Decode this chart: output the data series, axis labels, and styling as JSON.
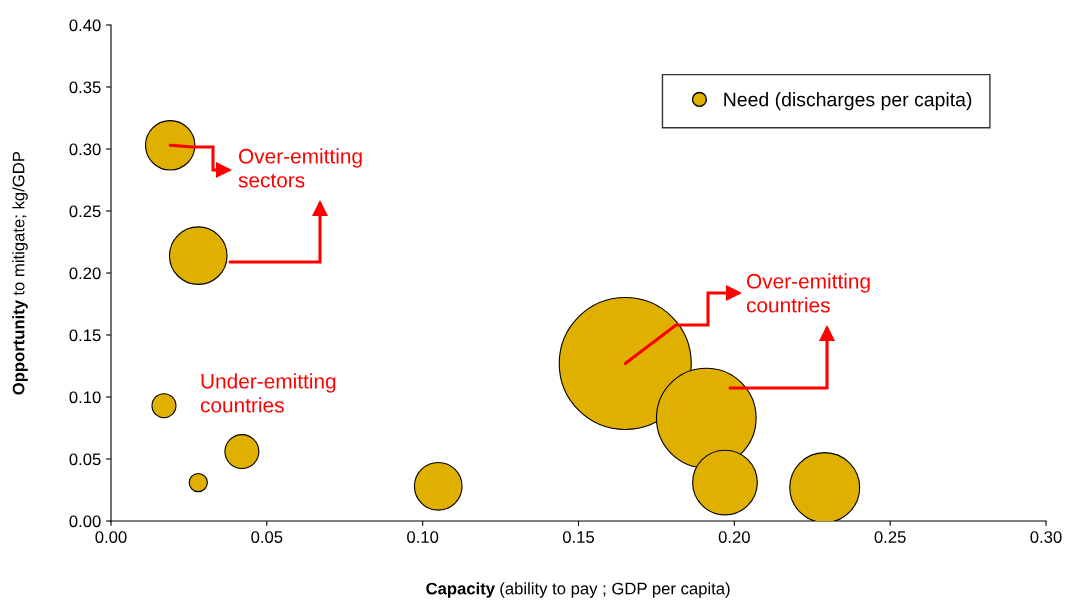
{
  "chart_data": {
    "type": "bubble",
    "xlabel": "Capacity (ability to pay ; GDP per capita)",
    "ylabel": "Opportunity to mitigate; kg/GDP",
    "x": [
      0.019,
      0.028,
      0.017,
      0.028,
      0.042,
      0.105,
      0.165,
      0.191,
      0.197,
      0.229
    ],
    "series": [
      {
        "name": "Need (discharges per capita)",
        "color": "#e0b000",
        "values": [
          0.303,
          0.214,
          0.093,
          0.031,
          0.056,
          0.028,
          0.127,
          0.083,
          0.031,
          0.027
        ],
        "sizes": [
          0.14,
          0.19,
          0.033,
          0.019,
          0.066,
          0.13,
          1,
          0.57,
          0.24,
          0.28
        ]
      }
    ],
    "xlim": [
      0,
      0.3
    ],
    "xticks": [
      {
        "value": 0,
        "label": "0.00"
      },
      {
        "value": 0.05,
        "label": "0.05"
      },
      {
        "value": 0.1,
        "label": "0.10"
      },
      {
        "value": 0.15,
        "label": "0.15"
      },
      {
        "value": 0.2,
        "label": "0.20"
      },
      {
        "value": 0.25,
        "label": "0.25"
      },
      {
        "value": 0.3,
        "label": "0.30"
      }
    ],
    "ylim": [
      0,
      0.4
    ],
    "yticks": [
      {
        "value": 0,
        "label": "0.00"
      },
      {
        "value": 0.05,
        "label": "0.05"
      },
      {
        "value": 0.1,
        "label": "0.10"
      },
      {
        "value": 0.15,
        "label": "0.15"
      },
      {
        "value": 0.2,
        "label": "0.20"
      },
      {
        "value": 0.25,
        "label": "0.25"
      },
      {
        "value": 0.3,
        "label": "0.30"
      },
      {
        "value": 0.35,
        "label": "0.35"
      },
      {
        "value": 0.4,
        "label": "0.40"
      }
    ],
    "annotations": [
      {
        "text": "Over-emitting\nsectors",
        "x": 0.019,
        "y": 0.303
      },
      {
        "text": "Over-emitting\ncountries",
        "x": 0.165,
        "y": 0.127
      },
      "Under-emitting\ncountries"
    ],
    "legend": "top right",
    "grid": false
  }
}
